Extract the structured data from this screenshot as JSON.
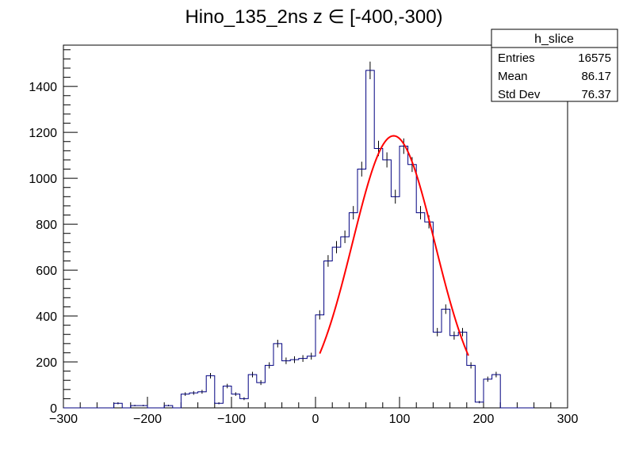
{
  "chart_data": {
    "type": "histogram",
    "title": "Hino_135_2ns z  ∈ [-400,-300)",
    "xlabel": "",
    "ylabel": "",
    "xlim": [
      -300,
      300
    ],
    "ylim": [
      0,
      1580
    ],
    "x_ticks": [
      -300,
      -200,
      -100,
      0,
      100,
      200,
      300
    ],
    "y_ticks": [
      0,
      200,
      400,
      600,
      800,
      1000,
      1200,
      1400
    ],
    "bin_width": 10,
    "bin_edges_start": -300,
    "values": [
      0,
      0,
      0,
      0,
      0,
      0,
      20,
      0,
      10,
      10,
      0,
      0,
      10,
      0,
      60,
      65,
      70,
      140,
      20,
      95,
      60,
      40,
      145,
      110,
      185,
      280,
      205,
      210,
      215,
      225,
      405,
      640,
      700,
      745,
      850,
      1040,
      1470,
      1130,
      1080,
      920,
      1140,
      1060,
      850,
      810,
      330,
      430,
      315,
      330,
      185,
      25,
      125,
      145,
      0,
      0,
      0,
      0
    ],
    "line_color": "#000080",
    "fit": {
      "type": "gaus",
      "range": [
        5,
        182
      ],
      "constant": 1185,
      "mean": 93,
      "sigma": 49,
      "color": "#ff0000"
    },
    "stats": {
      "title": "h_slice",
      "rows": [
        {
          "label": "Entries",
          "value": "16575"
        },
        {
          "label": "Mean",
          "value": "86.17"
        },
        {
          "label": "Std Dev",
          "value": "76.37"
        }
      ]
    }
  }
}
